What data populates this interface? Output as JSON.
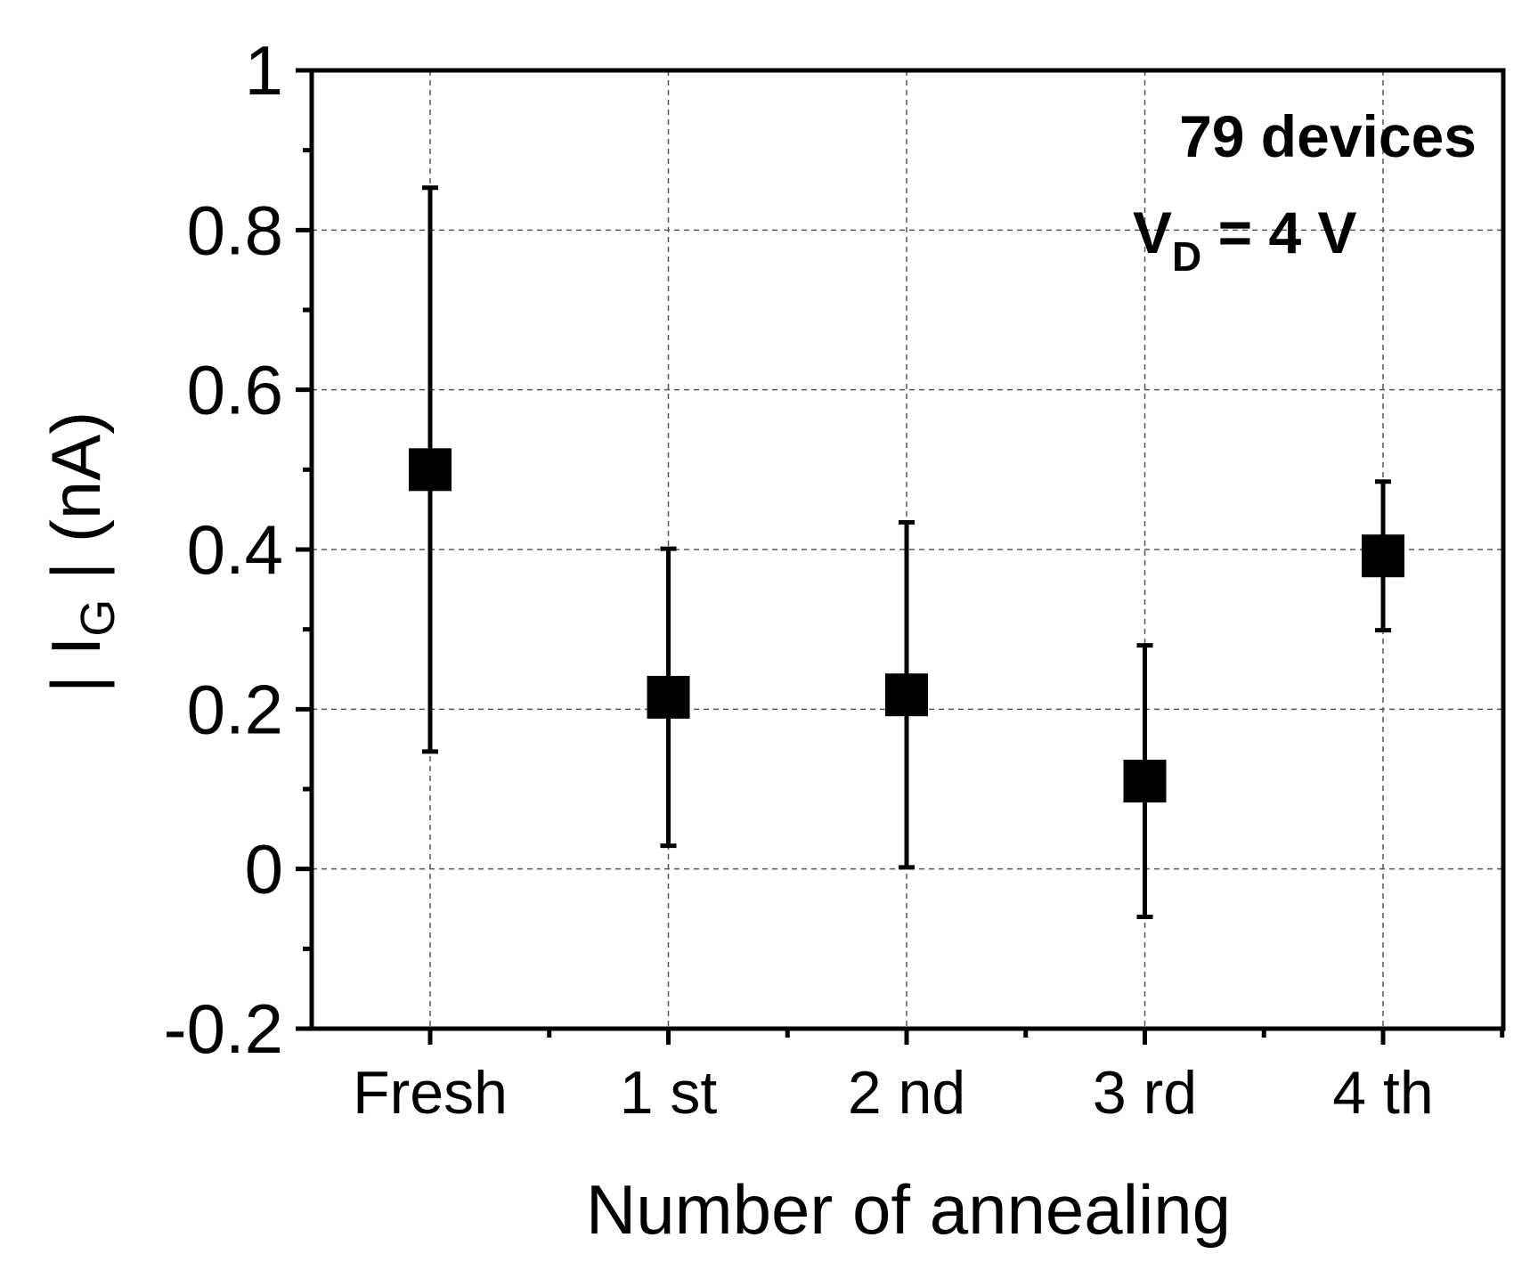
{
  "chart_data": {
    "type": "scatter",
    "title": "",
    "xlabel": "Number of annealing",
    "ylabel": {
      "prefix": "| I",
      "subscript": "G",
      "suffix": " | (nA)"
    },
    "categories": [
      "Fresh",
      "1 st",
      "2 nd",
      "3 rd",
      "4 th"
    ],
    "series": [
      {
        "name": "IG",
        "marker": "square",
        "color": "#000000",
        "values": [
          0.5,
          0.215,
          0.218,
          0.11,
          0.392
        ],
        "errors": [
          0.353,
          0.186,
          0.216,
          0.17,
          0.093
        ]
      }
    ],
    "ylim": [
      -0.2,
      1.0
    ],
    "yticks": [
      -0.2,
      0,
      0.2,
      0.4,
      0.6,
      0.8,
      1
    ],
    "ytick_labels": [
      "-0.2",
      "0",
      "0.2",
      "0.4",
      "0.6",
      "0.8",
      "1"
    ],
    "grid": true,
    "annotations": {
      "line1": "79 devices",
      "line2_prefix": "V",
      "line2_subscript": "D",
      "line2_suffix": " = 4 V"
    }
  }
}
